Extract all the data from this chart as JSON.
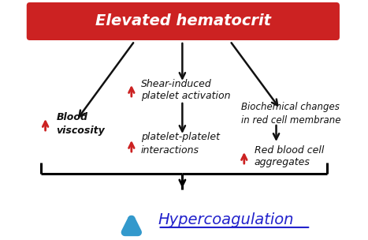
{
  "title": "Elevated hematocrit",
  "title_bg": "#cc2222",
  "title_text_color": "#ffffff",
  "bg_color": "#ffffff",
  "left_text": "Blood\nviscosity",
  "center_text": "Shear-induced\nplatelet activation",
  "right_text": "Biochemical changes\nin red cell membrane",
  "center_bottom_text": "platelet-platelet\ninteractions",
  "right_bottom_text": "Red blood cell\naggregates",
  "bottom_text": "Hypercoagulation",
  "bottom_arrow_color": "#3399cc",
  "red_arrow_color": "#cc2222",
  "black_arrow_color": "#111111",
  "text_color": "#111111"
}
